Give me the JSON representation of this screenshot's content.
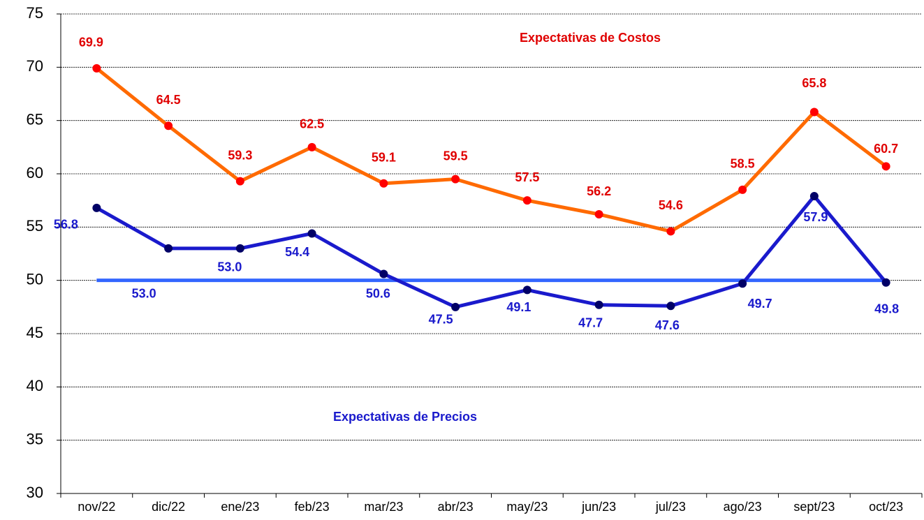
{
  "chart_data": {
    "type": "line",
    "categories": [
      "nov/22",
      "dic/22",
      "ene/23",
      "feb/23",
      "mar/23",
      "abr/23",
      "may/23",
      "jun/23",
      "jul/23",
      "ago/23",
      "sept/23",
      "oct/23"
    ],
    "series": [
      {
        "name": "Expectativas de Costos",
        "color": "#ff6a00",
        "marker_color": "#ff0000",
        "label_color": "#e00000",
        "values": [
          69.9,
          64.5,
          59.3,
          62.5,
          59.1,
          59.5,
          57.5,
          56.2,
          54.6,
          58.5,
          65.8,
          60.7
        ],
        "value_labels": [
          "69.9",
          "64.5",
          "59.3",
          "62.5",
          "59.1",
          "59.5",
          "57.5",
          "56.2",
          "54.6",
          "58.5",
          "65.8",
          "60.7"
        ]
      },
      {
        "name": "Expectativas de Precios",
        "color": "#1a1acc",
        "marker_color": "#000066",
        "label_color": "#1a1acc",
        "values": [
          56.8,
          53.0,
          53.0,
          54.4,
          50.6,
          47.5,
          49.1,
          47.7,
          47.6,
          49.7,
          57.9,
          49.8
        ],
        "value_labels": [
          "56.8",
          "53.0",
          "53.0",
          "54.4",
          "50.6",
          "47.5",
          "49.1",
          "47.7",
          "47.6",
          "49.7",
          "57.9",
          "49.8"
        ]
      }
    ],
    "reference_line": {
      "value": 50,
      "color": "#3366ff"
    },
    "ylim": [
      30,
      75
    ],
    "yticks": [
      30,
      35,
      40,
      45,
      50,
      55,
      60,
      65,
      70,
      75
    ],
    "grid": true
  }
}
